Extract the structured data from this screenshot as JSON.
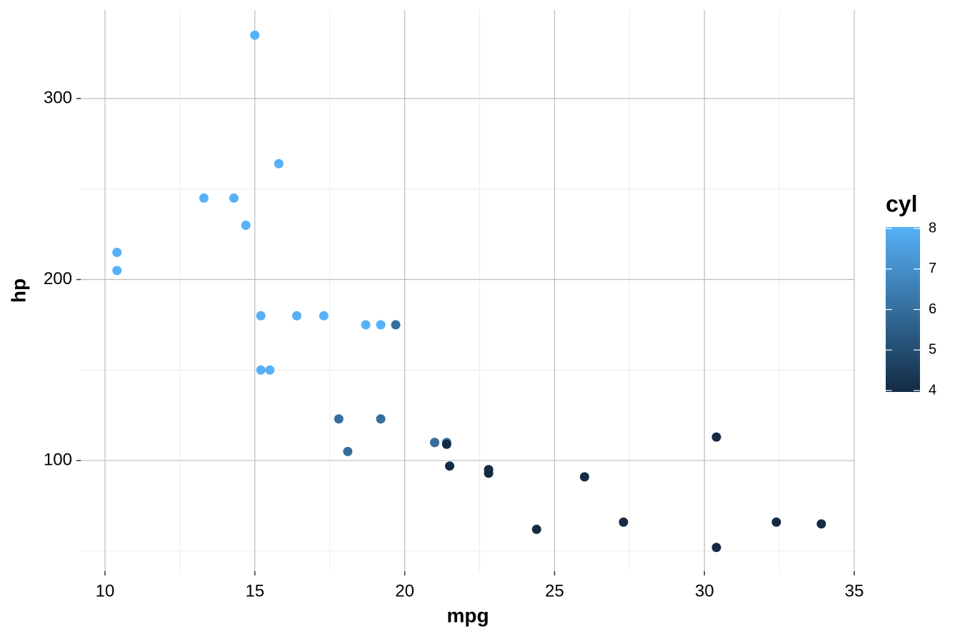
{
  "chart_data": {
    "type": "scatter",
    "x_label": "mpg",
    "y_label": "hp",
    "x": [
      21,
      21,
      22.8,
      21.4,
      18.7,
      18.1,
      14.3,
      24.4,
      22.8,
      19.2,
      17.8,
      16.4,
      17.3,
      15.2,
      10.4,
      10.4,
      14.7,
      32.4,
      30.4,
      33.9,
      21.5,
      15.5,
      15.2,
      13.3,
      19.2,
      27.3,
      26,
      30.4,
      15.8,
      19.7,
      15,
      21.4
    ],
    "y": [
      110,
      110,
      93,
      110,
      175,
      105,
      245,
      62,
      95,
      123,
      123,
      180,
      180,
      180,
      205,
      215,
      230,
      66,
      52,
      65,
      97,
      150,
      150,
      245,
      175,
      66,
      91,
      113,
      264,
      175,
      335,
      109
    ],
    "color_values": [
      6,
      6,
      4,
      6,
      8,
      6,
      8,
      4,
      4,
      6,
      6,
      8,
      8,
      8,
      8,
      8,
      8,
      4,
      4,
      4,
      4,
      8,
      8,
      8,
      8,
      4,
      4,
      4,
      8,
      6,
      8,
      4
    ],
    "xlim": [
      9.19,
      35
    ],
    "ylim": [
      38.9,
      348.9
    ],
    "xticks": [
      10,
      15,
      20,
      25,
      30,
      35
    ],
    "yticks": [
      100,
      200,
      300
    ],
    "grid": true,
    "legend": {
      "title": "cyl",
      "position": "right",
      "low_color": "#132B43",
      "high_color": "#56B1F7",
      "lim": [
        4,
        8
      ],
      "ticks": [
        4,
        5,
        6,
        7,
        8
      ]
    }
  }
}
